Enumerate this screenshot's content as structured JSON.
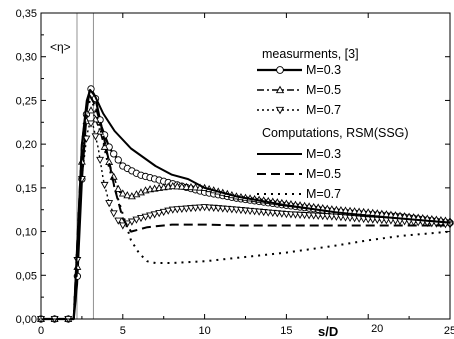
{
  "chart_data": {
    "type": "line",
    "title": "",
    "ylabel_annotation": "<η>",
    "xlabel": "s/D",
    "xlim": [
      0,
      25
    ],
    "ylim": [
      0,
      0.35
    ],
    "xticks": [
      {
        "value": 0,
        "label": "0"
      },
      {
        "value": 5,
        "label": "5"
      },
      {
        "value": 10,
        "label": "10"
      },
      {
        "value": 15,
        "label": "15"
      },
      {
        "value": 20,
        "label": "20"
      },
      {
        "value": 25,
        "label": "25"
      }
    ],
    "yticks": [
      {
        "value": 0.0,
        "label": "0,00"
      },
      {
        "value": 0.05,
        "label": "0,05"
      },
      {
        "value": 0.1,
        "label": "0,10"
      },
      {
        "value": 0.15,
        "label": "0,15"
      },
      {
        "value": 0.2,
        "label": "0,20"
      },
      {
        "value": 0.25,
        "label": "0,25"
      },
      {
        "value": 0.3,
        "label": "0,30"
      },
      {
        "value": 0.35,
        "label": "0,35"
      }
    ],
    "vlines": [
      2.2,
      3.2
    ],
    "legend_position": "top-right",
    "legend": {
      "measurements_header": "measurments, [3]",
      "computations_header": "Computations, RSM(SSG)"
    },
    "series": [
      {
        "name": "M=0.3",
        "group": "measurements",
        "marker": "circle",
        "dash": "solid",
        "width": 2.2,
        "x": [
          0,
          1.2,
          2.0,
          2.2,
          2.5,
          2.8,
          3.0,
          3.3,
          3.7,
          4.2,
          5,
          6,
          7,
          8,
          10,
          12,
          15,
          18,
          20,
          22,
          25
        ],
        "y": [
          0.0,
          0.0,
          0.0,
          0.04,
          0.16,
          0.24,
          0.265,
          0.255,
          0.22,
          0.195,
          0.175,
          0.165,
          0.16,
          0.155,
          0.145,
          0.138,
          0.13,
          0.123,
          0.12,
          0.117,
          0.11
        ]
      },
      {
        "name": "M=0.5",
        "group": "measurements",
        "marker": "triangle-up",
        "dash": "dashdot",
        "width": 1.4,
        "x": [
          0,
          1.2,
          2.0,
          2.2,
          2.5,
          2.8,
          3.0,
          3.2,
          3.6,
          4.0,
          4.4,
          4.8,
          5.5,
          6.5,
          8,
          10,
          12,
          15,
          18,
          20,
          22,
          25
        ],
        "y": [
          0.0,
          0.0,
          0.0,
          0.05,
          0.18,
          0.23,
          0.24,
          0.235,
          0.215,
          0.19,
          0.165,
          0.145,
          0.14,
          0.148,
          0.152,
          0.15,
          0.14,
          0.132,
          0.125,
          0.122,
          0.118,
          0.112
        ]
      },
      {
        "name": "M=0.7",
        "group": "measurements",
        "marker": "triangle-down",
        "dash": "dot",
        "width": 1.4,
        "x": [
          0,
          1.2,
          2.0,
          2.2,
          2.5,
          2.8,
          3.0,
          3.2,
          3.5,
          3.8,
          4.2,
          4.6,
          5,
          6,
          7,
          8,
          10,
          12,
          15,
          18,
          20,
          22,
          25
        ],
        "y": [
          0.0,
          0.0,
          0.0,
          0.06,
          0.16,
          0.21,
          0.225,
          0.22,
          0.195,
          0.16,
          0.13,
          0.115,
          0.107,
          0.115,
          0.12,
          0.125,
          0.128,
          0.125,
          0.12,
          0.117,
          0.114,
          0.112,
          0.108
        ]
      },
      {
        "name": "M=0.3",
        "group": "computations",
        "marker": "none",
        "dash": "solid",
        "width": 2.0,
        "x": [
          2.0,
          2.2,
          2.5,
          2.8,
          3.0,
          3.3,
          3.8,
          4.5,
          5.5,
          7,
          8,
          9,
          10,
          12,
          15,
          18,
          20,
          22,
          25
        ],
        "y": [
          0.0,
          0.08,
          0.2,
          0.25,
          0.262,
          0.255,
          0.235,
          0.215,
          0.195,
          0.175,
          0.165,
          0.16,
          0.15,
          0.14,
          0.13,
          0.122,
          0.118,
          0.115,
          0.11
        ]
      },
      {
        "name": "M=0.5",
        "group": "computations",
        "marker": "none",
        "dash": "dashed",
        "width": 2.0,
        "x": [
          2.0,
          2.2,
          2.5,
          2.8,
          3.0,
          3.3,
          3.7,
          4.1,
          4.5,
          5.0,
          5.5,
          6.5,
          8,
          10,
          12,
          15,
          18,
          20,
          22,
          25
        ],
        "y": [
          0.0,
          0.08,
          0.2,
          0.245,
          0.255,
          0.245,
          0.22,
          0.185,
          0.15,
          0.115,
          0.1,
          0.105,
          0.108,
          0.108,
          0.107,
          0.107,
          0.107,
          0.107,
          0.107,
          0.107
        ]
      },
      {
        "name": "M=0.7",
        "group": "computations",
        "marker": "none",
        "dash": "dotted",
        "width": 2.0,
        "x": [
          2.0,
          2.2,
          2.5,
          2.8,
          3.0,
          3.2,
          3.6,
          4.0,
          4.5,
          5.0,
          5.5,
          6.0,
          6.5,
          7,
          8,
          10,
          12,
          15,
          18,
          20,
          22,
          25
        ],
        "y": [
          0.0,
          0.07,
          0.19,
          0.24,
          0.25,
          0.245,
          0.22,
          0.185,
          0.15,
          0.12,
          0.09,
          0.075,
          0.066,
          0.064,
          0.064,
          0.066,
          0.07,
          0.076,
          0.084,
          0.09,
          0.095,
          0.1
        ]
      }
    ]
  }
}
